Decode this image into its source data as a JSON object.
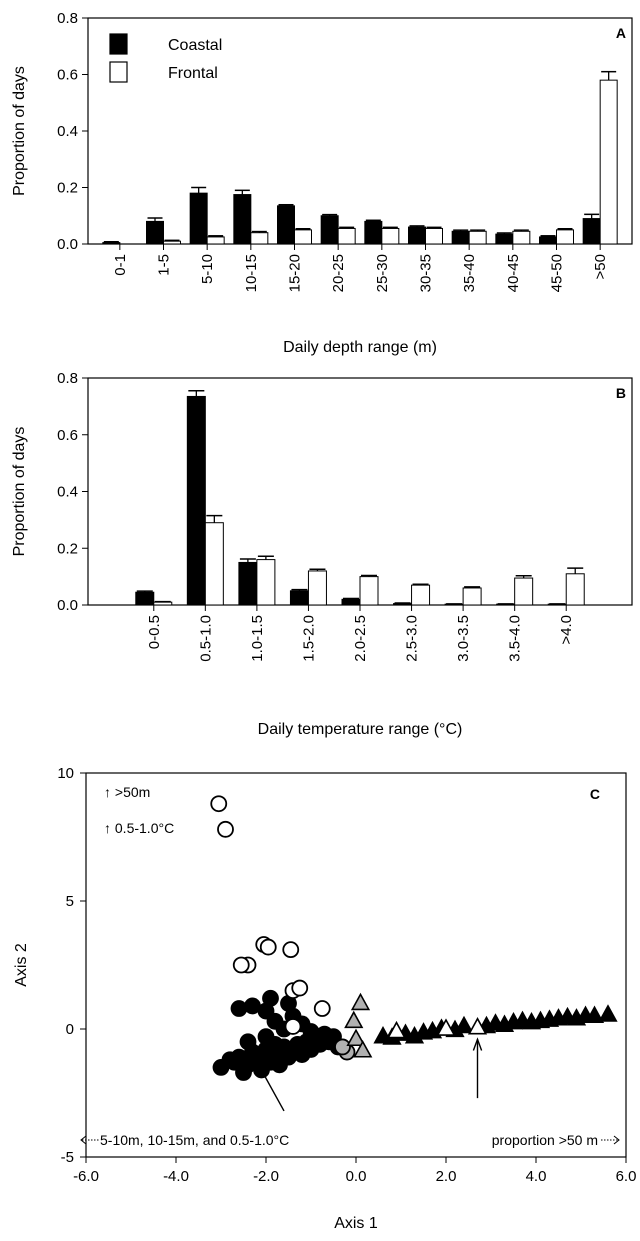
{
  "chart_data": [
    {
      "panel": "A",
      "type": "bar",
      "xlabel": "Daily depth range (m)",
      "ylabel": "Proportion of days",
      "ylim": [
        0,
        0.8
      ],
      "yticks": [
        "0.0",
        "0.2",
        "0.4",
        "0.6",
        "0.8"
      ],
      "categories": [
        "0-1",
        "1-5",
        "5-10",
        "10-15",
        "15-20",
        "20-25",
        "25-30",
        "30-35",
        "35-40",
        "40-45",
        "45-50",
        ">50"
      ],
      "legend": {
        "position": "top-left"
      },
      "series": [
        {
          "name": "Coastal",
          "color": "#000000",
          "values": [
            0.005,
            0.08,
            0.18,
            0.175,
            0.135,
            0.1,
            0.08,
            0.06,
            0.045,
            0.035,
            0.025,
            0.09
          ],
          "errors": [
            0.003,
            0.012,
            0.02,
            0.015,
            0.004,
            0.004,
            0.004,
            0.004,
            0.004,
            0.004,
            0.004,
            0.015
          ]
        },
        {
          "name": "Frontal",
          "color": "#ffffff",
          "values": [
            0.0,
            0.01,
            0.025,
            0.04,
            0.05,
            0.055,
            0.055,
            0.055,
            0.045,
            0.045,
            0.05,
            0.58
          ],
          "errors": [
            0.0,
            0.003,
            0.004,
            0.004,
            0.004,
            0.004,
            0.004,
            0.004,
            0.004,
            0.004,
            0.004,
            0.03
          ]
        }
      ]
    },
    {
      "panel": "B",
      "type": "bar",
      "xlabel": "Daily temperature range (°C)",
      "ylabel": "Proportion of days",
      "ylim": [
        0,
        0.8
      ],
      "yticks": [
        "0.0",
        "0.2",
        "0.4",
        "0.6",
        "0.8"
      ],
      "categories": [
        "0-0.5",
        "0.5-1.0",
        "1.0-1.5",
        "1.5-2.0",
        "2.0-2.5",
        "2.5-3.0",
        "3.0-3.5",
        "3.5-4.0",
        ">4.0"
      ],
      "series": [
        {
          "name": "Coastal",
          "color": "#000000",
          "values": [
            0.045,
            0.735,
            0.15,
            0.05,
            0.02,
            0.005,
            0.003,
            0.003,
            0.003
          ],
          "errors": [
            0.004,
            0.02,
            0.012,
            0.004,
            0.003,
            0.002,
            0.001,
            0.001,
            0.001
          ]
        },
        {
          "name": "Frontal",
          "color": "#ffffff",
          "values": [
            0.01,
            0.29,
            0.16,
            0.12,
            0.1,
            0.07,
            0.06,
            0.095,
            0.11
          ],
          "errors": [
            0.002,
            0.025,
            0.012,
            0.006,
            0.004,
            0.003,
            0.004,
            0.008,
            0.02
          ]
        }
      ]
    },
    {
      "panel": "C",
      "type": "scatter",
      "xlabel": "Axis 1",
      "ylabel": "Axis 2",
      "xlim": [
        -6,
        6
      ],
      "ylim": [
        -5,
        10
      ],
      "xticks": [
        "-6.0",
        "-4.0",
        "-2.0",
        "0.0",
        "2.0",
        "4.0",
        "6.0"
      ],
      "yticks": [
        "-5",
        "0",
        "5",
        "10"
      ],
      "annotations": {
        "top_arrow_1": "↑ >50m",
        "top_arrow_2": "↑ 0.5-1.0°C",
        "bottom_left": "5-10m, 10-15m, and 0.5-1.0°C",
        "bottom_right": "proportion >50 m"
      },
      "series": [
        {
          "marker": "circle",
          "fill": "#000000",
          "points": [
            [
              -3.0,
              -1.5
            ],
            [
              -2.7,
              -1.3
            ],
            [
              -2.6,
              -1.1
            ],
            [
              -2.5,
              -1.7
            ],
            [
              -2.4,
              -1.4
            ],
            [
              -2.3,
              -0.9
            ],
            [
              -2.2,
              -1.2
            ],
            [
              -2.1,
              -1.6
            ],
            [
              -2.0,
              -0.8
            ],
            [
              -1.9,
              -1.3
            ],
            [
              -1.8,
              -1.0
            ],
            [
              -1.7,
              -1.4
            ],
            [
              -1.6,
              -0.7
            ],
            [
              -1.5,
              -1.1
            ],
            [
              -1.4,
              -0.9
            ],
            [
              -1.3,
              -0.6
            ],
            [
              -1.2,
              -1.0
            ],
            [
              -1.1,
              -0.5
            ],
            [
              -1.0,
              -0.8
            ],
            [
              -0.9,
              -0.4
            ],
            [
              -0.8,
              -0.6
            ],
            [
              -0.7,
              -0.2
            ],
            [
              -0.6,
              -0.5
            ],
            [
              -0.5,
              -0.3
            ],
            [
              -0.4,
              -0.7
            ],
            [
              -2.6,
              0.8
            ],
            [
              -2.3,
              0.9
            ],
            [
              -2.0,
              0.7
            ],
            [
              -1.8,
              0.3
            ],
            [
              -1.6,
              0.0
            ],
            [
              -1.4,
              0.5
            ],
            [
              -1.2,
              0.2
            ],
            [
              -1.0,
              -0.1
            ],
            [
              -2.4,
              -0.5
            ],
            [
              -2.0,
              -0.3
            ],
            [
              -1.8,
              -0.6
            ],
            [
              -2.8,
              -1.2
            ],
            [
              -1.9,
              1.2
            ],
            [
              -1.5,
              1.0
            ]
          ]
        },
        {
          "marker": "circle",
          "fill": "#ffffff",
          "points": [
            [
              -3.05,
              8.8
            ],
            [
              -2.9,
              7.8
            ],
            [
              -2.05,
              3.3
            ],
            [
              -1.95,
              3.2
            ],
            [
              -1.45,
              3.1
            ],
            [
              -2.4,
              2.5
            ],
            [
              -2.55,
              2.5
            ],
            [
              -1.4,
              1.5
            ],
            [
              -1.25,
              1.6
            ],
            [
              -0.75,
              0.8
            ],
            [
              -1.4,
              0.1
            ]
          ]
        },
        {
          "marker": "circle",
          "fill": "#b0b0b0",
          "points": [
            [
              -0.2,
              -0.9
            ],
            [
              -0.3,
              -0.7
            ]
          ]
        },
        {
          "marker": "triangle",
          "fill": "#b0b0b0",
          "points": [
            [
              0.1,
              1.0
            ],
            [
              -0.05,
              0.3
            ],
            [
              0.0,
              -0.4
            ],
            [
              0.15,
              -0.85
            ]
          ]
        },
        {
          "marker": "triangle",
          "fill": "#000000",
          "points": [
            [
              0.6,
              -0.3
            ],
            [
              0.8,
              -0.35
            ],
            [
              1.1,
              -0.2
            ],
            [
              1.3,
              -0.3
            ],
            [
              1.5,
              -0.15
            ],
            [
              1.7,
              -0.1
            ],
            [
              1.9,
              0.0
            ],
            [
              2.2,
              -0.05
            ],
            [
              2.4,
              0.1
            ],
            [
              2.9,
              0.1
            ],
            [
              3.1,
              0.2
            ],
            [
              3.3,
              0.15
            ],
            [
              3.5,
              0.25
            ],
            [
              3.7,
              0.3
            ],
            [
              3.9,
              0.25
            ],
            [
              4.1,
              0.3
            ],
            [
              4.3,
              0.35
            ],
            [
              4.5,
              0.4
            ],
            [
              4.7,
              0.45
            ],
            [
              4.9,
              0.4
            ],
            [
              5.1,
              0.5
            ],
            [
              5.3,
              0.5
            ],
            [
              5.6,
              0.55
            ]
          ]
        },
        {
          "marker": "triangle",
          "fill": "#ffffff",
          "points": [
            [
              0.9,
              -0.1
            ],
            [
              2.0,
              0.0
            ],
            [
              2.7,
              0.05
            ]
          ]
        }
      ]
    }
  ]
}
